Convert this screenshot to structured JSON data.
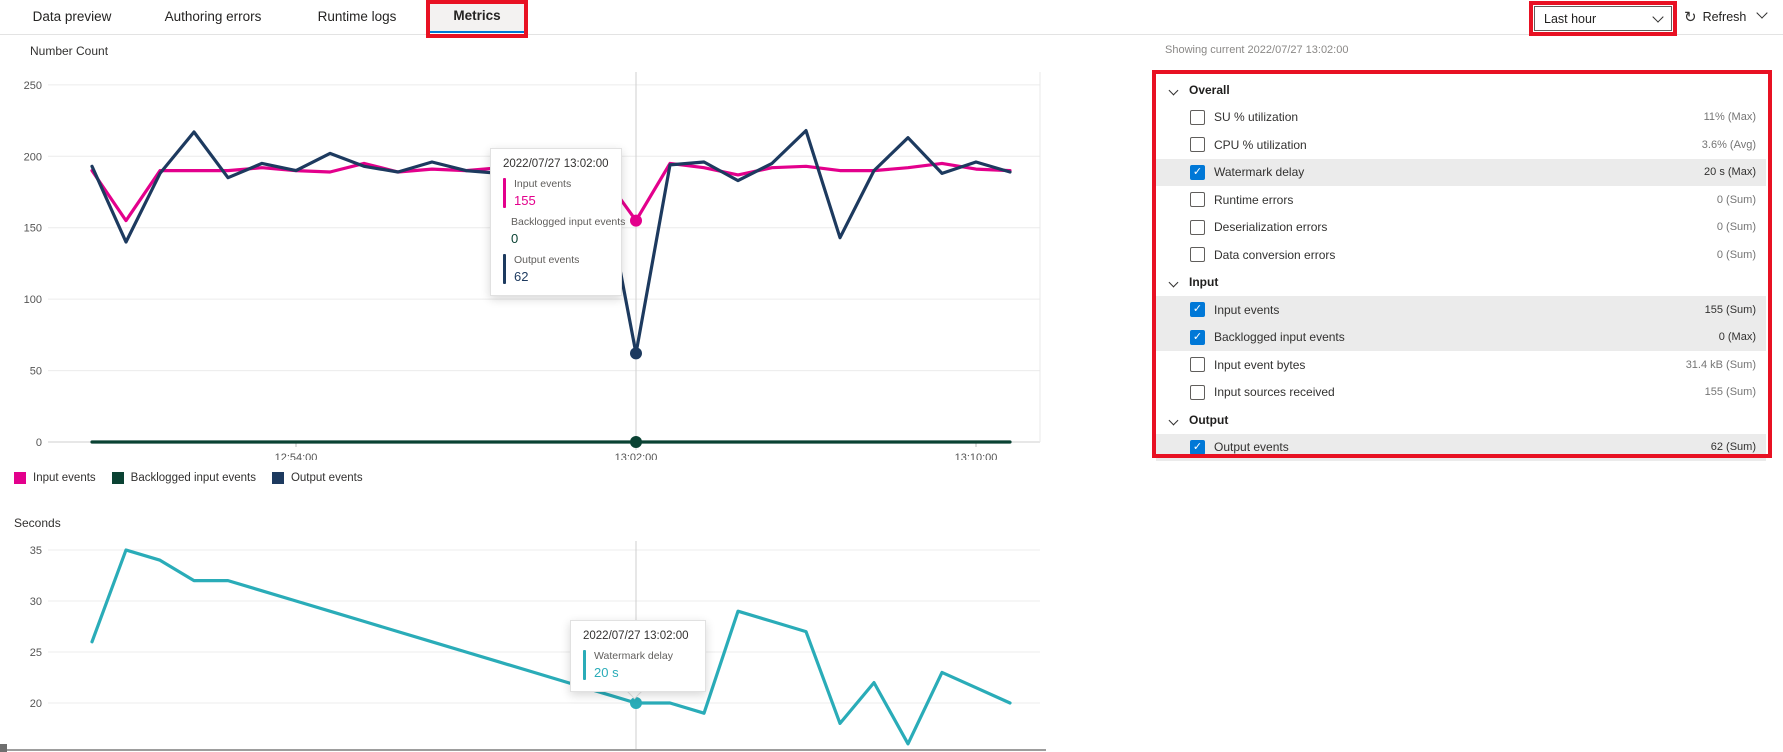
{
  "tabs": [
    {
      "label": "Data preview",
      "active": false,
      "highlighted": false
    },
    {
      "label": "Authoring errors",
      "active": false,
      "highlighted": false
    },
    {
      "label": "Runtime logs",
      "active": false,
      "highlighted": false
    },
    {
      "label": "Metrics",
      "active": true,
      "highlighted": true
    }
  ],
  "toolbar": {
    "time_range": "Last hour",
    "refresh_label": "Refresh",
    "refresh_icon": "↻"
  },
  "status_line": "Showing current 2022/07/27 13:02:00",
  "colors": {
    "input_events": "#e3008c",
    "backlogged_input_events": "#0a4233",
    "output_events": "#1d3a5f",
    "watermark_delay": "#2aacb8",
    "accent_blue": "#0078d4",
    "checkbox_blue": "#0078d7",
    "highlight_red": "#e81123",
    "selected_row_bg": "#ebebeb"
  },
  "metrics_panel": {
    "sections": [
      {
        "title": "Overall",
        "rows": [
          {
            "label": "SU % utilization",
            "value": "11% (Max)",
            "checked": false
          },
          {
            "label": "CPU % utilization",
            "value": "3.6% (Avg)",
            "checked": false
          },
          {
            "label": "Watermark delay",
            "value": "20 s (Max)",
            "checked": true
          },
          {
            "label": "Runtime errors",
            "value": "0 (Sum)",
            "checked": false
          },
          {
            "label": "Deserialization errors",
            "value": "0 (Sum)",
            "checked": false
          },
          {
            "label": "Data conversion errors",
            "value": "0 (Sum)",
            "checked": false
          }
        ]
      },
      {
        "title": "Input",
        "rows": [
          {
            "label": "Input events",
            "value": "155 (Sum)",
            "checked": true
          },
          {
            "label": "Backlogged input events",
            "value": "0 (Max)",
            "checked": true
          },
          {
            "label": "Input event bytes",
            "value": "31.4 kB (Sum)",
            "checked": false
          },
          {
            "label": "Input sources received",
            "value": "155 (Sum)",
            "checked": false
          }
        ]
      },
      {
        "title": "Output",
        "rows": [
          {
            "label": "Output events",
            "value": "62 (Sum)",
            "checked": true
          }
        ]
      }
    ]
  },
  "chart_data": [
    {
      "type": "line",
      "title": "Number Count",
      "ylabel": "Number Count",
      "ylim": [
        0,
        250
      ],
      "y_ticks": [
        250,
        200,
        150,
        100,
        50,
        0
      ],
      "x_ticks": [
        {
          "label": "12:54:00",
          "index": 6
        },
        {
          "label": "13:02:00",
          "index": 16
        },
        {
          "label": "13:10:00",
          "index": 26
        }
      ],
      "crosshair_index": 16,
      "grid": true,
      "legend_position": "bottom",
      "series": [
        {
          "name": "Input events",
          "color": "#e3008c",
          "values": [
            190,
            155,
            190,
            190,
            190,
            192,
            190,
            189,
            195,
            189,
            191,
            190,
            192,
            190,
            193,
            188,
            155,
            195,
            192,
            187,
            192,
            193,
            190,
            190,
            192,
            195,
            191,
            190
          ]
        },
        {
          "name": "Backlogged input events",
          "color": "#0a4233",
          "values": [
            0,
            0,
            0,
            0,
            0,
            0,
            0,
            0,
            0,
            0,
            0,
            0,
            0,
            0,
            0,
            0,
            0,
            0,
            0,
            0,
            0,
            0,
            0,
            0,
            0,
            0,
            0,
            0
          ]
        },
        {
          "name": "Output events",
          "color": "#1d3a5f",
          "values": [
            193,
            140,
            188,
            217,
            185,
            195,
            190,
            202,
            193,
            189,
            196,
            190,
            188,
            193,
            190,
            187,
            62,
            194,
            196,
            183,
            195,
            218,
            143,
            190,
            213,
            188,
            196,
            189
          ]
        }
      ],
      "tooltip": {
        "title": "2022/07/27 13:02:00",
        "entries": [
          {
            "label": "Input events",
            "value": "155",
            "color": "#e3008c"
          },
          {
            "label": "Backlogged input events",
            "value": "0",
            "color": "#0a4233"
          },
          {
            "label": "Output events",
            "value": "62",
            "color": "#1d3a5f"
          }
        ]
      }
    },
    {
      "type": "line",
      "title": "Seconds",
      "ylabel": "Seconds",
      "ylim": [
        15,
        37
      ],
      "y_ticks": [
        35,
        30,
        25,
        20
      ],
      "crosshair_index": 16,
      "grid": true,
      "series": [
        {
          "name": "Watermark delay",
          "color": "#2aacb8",
          "values": [
            26,
            35,
            34,
            32,
            32,
            31,
            30,
            29,
            28,
            27,
            26,
            25,
            24,
            23,
            22,
            21,
            20,
            20,
            19,
            29,
            28,
            27,
            18,
            22,
            16,
            23,
            21.5,
            20
          ]
        }
      ],
      "tooltip": {
        "title": "2022/07/27 13:02:00",
        "entries": [
          {
            "label": "Watermark delay",
            "value": "20 s",
            "color": "#2aacb8"
          }
        ]
      }
    }
  ]
}
